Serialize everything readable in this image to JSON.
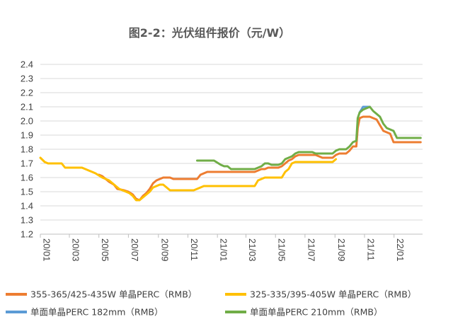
{
  "chart_data": {
    "type": "line",
    "title": "图2-2：光伏组件报价（元/W）",
    "xlabel": "",
    "ylabel": "",
    "ylim": [
      1.2,
      2.4
    ],
    "yticks": [
      "1.2",
      "1.3",
      "1.4",
      "1.5",
      "1.6",
      "1.7",
      "1.8",
      "1.9",
      "2.0",
      "2.1",
      "2.2",
      "2.3",
      "2.4"
    ],
    "xlim": [
      "2020-01-01",
      "2022-03-01"
    ],
    "xticks": [
      {
        "label": "20/01",
        "date": "2020-01-01"
      },
      {
        "label": "20/03",
        "date": "2020-03-01"
      },
      {
        "label": "20/05",
        "date": "2020-05-01"
      },
      {
        "label": "20/07",
        "date": "2020-07-01"
      },
      {
        "label": "20/09",
        "date": "2020-09-01"
      },
      {
        "label": "20/11",
        "date": "2020-11-01"
      },
      {
        "label": "21/01",
        "date": "2021-01-01"
      },
      {
        "label": "21/03",
        "date": "2021-03-01"
      },
      {
        "label": "21/05",
        "date": "2021-05-01"
      },
      {
        "label": "21/07",
        "date": "2021-07-01"
      },
      {
        "label": "21/09",
        "date": "2021-09-01"
      },
      {
        "label": "21/11",
        "date": "2021-11-01"
      },
      {
        "label": "22/01",
        "date": "2022-01-01"
      }
    ],
    "grid": true,
    "legend_position": "bottom",
    "series": [
      {
        "name": "355-365/425-435W 单晶PERC（RMB）",
        "color": "#ED7D31",
        "points": [
          [
            "2020-05-01",
            1.62
          ],
          [
            "2020-05-08",
            1.61
          ],
          [
            "2020-05-15",
            1.59
          ],
          [
            "2020-05-22",
            1.57
          ],
          [
            "2020-06-01",
            1.55
          ],
          [
            "2020-06-08",
            1.52
          ],
          [
            "2020-06-22",
            1.51
          ],
          [
            "2020-07-01",
            1.5
          ],
          [
            "2020-07-10",
            1.48
          ],
          [
            "2020-07-17",
            1.45
          ],
          [
            "2020-07-24",
            1.44
          ],
          [
            "2020-07-31",
            1.47
          ],
          [
            "2020-08-07",
            1.49
          ],
          [
            "2020-08-14",
            1.52
          ],
          [
            "2020-08-21",
            1.56
          ],
          [
            "2020-08-28",
            1.58
          ],
          [
            "2020-09-04",
            1.59
          ],
          [
            "2020-09-11",
            1.6
          ],
          [
            "2020-09-25",
            1.6
          ],
          [
            "2020-10-02",
            1.59
          ],
          [
            "2020-10-16",
            1.59
          ],
          [
            "2020-11-13",
            1.59
          ],
          [
            "2020-11-20",
            1.59
          ],
          [
            "2020-11-27",
            1.62
          ],
          [
            "2020-12-04",
            1.63
          ],
          [
            "2020-12-11",
            1.64
          ],
          [
            "2021-01-29",
            1.64
          ],
          [
            "2021-03-19",
            1.64
          ],
          [
            "2021-03-26",
            1.65
          ],
          [
            "2021-04-02",
            1.66
          ],
          [
            "2021-04-09",
            1.66
          ],
          [
            "2021-04-16",
            1.67
          ],
          [
            "2021-04-30",
            1.67
          ],
          [
            "2021-05-07",
            1.67
          ],
          [
            "2021-05-14",
            1.68
          ],
          [
            "2021-05-21",
            1.7
          ],
          [
            "2021-05-28",
            1.72
          ],
          [
            "2021-06-04",
            1.73
          ],
          [
            "2021-06-11",
            1.75
          ],
          [
            "2021-06-18",
            1.76
          ],
          [
            "2021-07-02",
            1.76
          ],
          [
            "2021-07-23",
            1.76
          ],
          [
            "2021-07-30",
            1.75
          ],
          [
            "2021-08-06",
            1.74
          ],
          [
            "2021-08-27",
            1.74
          ],
          [
            "2021-09-03",
            1.76
          ],
          [
            "2021-09-10",
            1.77
          ],
          [
            "2021-09-24",
            1.77
          ],
          [
            "2021-10-01",
            1.79
          ],
          [
            "2021-10-08",
            1.82
          ],
          [
            "2021-10-15",
            1.82
          ],
          [
            "2021-10-18",
            1.95
          ],
          [
            "2021-10-22",
            2.02
          ],
          [
            "2021-10-29",
            2.03
          ],
          [
            "2021-11-12",
            2.03
          ],
          [
            "2021-11-19",
            2.02
          ],
          [
            "2021-11-26",
            2.01
          ],
          [
            "2021-12-03",
            1.97
          ],
          [
            "2021-12-10",
            1.93
          ],
          [
            "2021-12-17",
            1.92
          ],
          [
            "2021-12-24",
            1.91
          ],
          [
            "2021-12-31",
            1.85
          ],
          [
            "2022-02-25",
            1.85
          ]
        ]
      },
      {
        "name": "325-335/395-405W 单晶PERC（RMB）",
        "color": "#FFC000",
        "points": [
          [
            "2020-01-01",
            1.74
          ],
          [
            "2020-01-10",
            1.71
          ],
          [
            "2020-01-17",
            1.7
          ],
          [
            "2020-02-14",
            1.7
          ],
          [
            "2020-02-21",
            1.67
          ],
          [
            "2020-03-20",
            1.67
          ],
          [
            "2020-03-27",
            1.67
          ],
          [
            "2020-04-03",
            1.66
          ],
          [
            "2020-04-24",
            1.63
          ],
          [
            "2020-05-08",
            1.6
          ],
          [
            "2020-05-22",
            1.58
          ],
          [
            "2020-06-05",
            1.54
          ],
          [
            "2020-06-12",
            1.52
          ],
          [
            "2020-06-19",
            1.51
          ],
          [
            "2020-07-03",
            1.49
          ],
          [
            "2020-07-10",
            1.47
          ],
          [
            "2020-07-17",
            1.44
          ],
          [
            "2020-07-24",
            1.44
          ],
          [
            "2020-07-31",
            1.46
          ],
          [
            "2020-08-14",
            1.5
          ],
          [
            "2020-08-21",
            1.53
          ],
          [
            "2020-09-04",
            1.55
          ],
          [
            "2020-09-11",
            1.55
          ],
          [
            "2020-09-25",
            1.51
          ],
          [
            "2020-10-30",
            1.51
          ],
          [
            "2020-11-13",
            1.51
          ],
          [
            "2020-11-27",
            1.53
          ],
          [
            "2020-12-04",
            1.54
          ],
          [
            "2021-03-19",
            1.54
          ],
          [
            "2021-03-26",
            1.58
          ],
          [
            "2021-04-02",
            1.59
          ],
          [
            "2021-04-09",
            1.6
          ],
          [
            "2021-05-14",
            1.6
          ],
          [
            "2021-05-21",
            1.64
          ],
          [
            "2021-05-28",
            1.66
          ],
          [
            "2021-06-04",
            1.7
          ],
          [
            "2021-06-11",
            1.71
          ],
          [
            "2021-08-27",
            1.71
          ],
          [
            "2021-09-03",
            1.73
          ]
        ]
      },
      {
        "name": "单面单晶PERC 182mm（RMB）",
        "color": "#5B9BD5",
        "points": [
          [
            "2021-10-22",
            2.06
          ],
          [
            "2021-10-29",
            2.1
          ],
          [
            "2021-11-05",
            2.1
          ],
          [
            "2021-11-12",
            2.1
          ]
        ]
      },
      {
        "name": "单面单晶PERC 210mm（RMB）",
        "color": "#70AD47",
        "points": [
          [
            "2020-11-20",
            1.72
          ],
          [
            "2020-12-25",
            1.72
          ],
          [
            "2021-01-08",
            1.69
          ],
          [
            "2021-01-15",
            1.68
          ],
          [
            "2021-01-22",
            1.68
          ],
          [
            "2021-01-29",
            1.66
          ],
          [
            "2021-03-19",
            1.66
          ],
          [
            "2021-03-26",
            1.67
          ],
          [
            "2021-04-02",
            1.68
          ],
          [
            "2021-04-09",
            1.7
          ],
          [
            "2021-04-16",
            1.7
          ],
          [
            "2021-04-23",
            1.69
          ],
          [
            "2021-05-07",
            1.69
          ],
          [
            "2021-05-14",
            1.7
          ],
          [
            "2021-05-21",
            1.73
          ],
          [
            "2021-06-04",
            1.75
          ],
          [
            "2021-06-11",
            1.77
          ],
          [
            "2021-06-18",
            1.78
          ],
          [
            "2021-07-16",
            1.78
          ],
          [
            "2021-07-23",
            1.77
          ],
          [
            "2021-08-27",
            1.77
          ],
          [
            "2021-09-03",
            1.79
          ],
          [
            "2021-09-10",
            1.8
          ],
          [
            "2021-09-24",
            1.8
          ],
          [
            "2021-10-01",
            1.82
          ],
          [
            "2021-10-08",
            1.85
          ],
          [
            "2021-10-15",
            1.86
          ],
          [
            "2021-10-18",
            2.02
          ],
          [
            "2021-10-22",
            2.06
          ],
          [
            "2021-10-29",
            2.08
          ],
          [
            "2021-11-05",
            2.09
          ],
          [
            "2021-11-12",
            2.1
          ],
          [
            "2021-11-19",
            2.07
          ],
          [
            "2021-11-26",
            2.05
          ],
          [
            "2021-12-03",
            2.03
          ],
          [
            "2021-12-10",
            1.98
          ],
          [
            "2021-12-17",
            1.95
          ],
          [
            "2021-12-24",
            1.94
          ],
          [
            "2021-12-31",
            1.93
          ],
          [
            "2022-01-07",
            1.88
          ],
          [
            "2022-02-25",
            1.88
          ]
        ]
      }
    ]
  }
}
